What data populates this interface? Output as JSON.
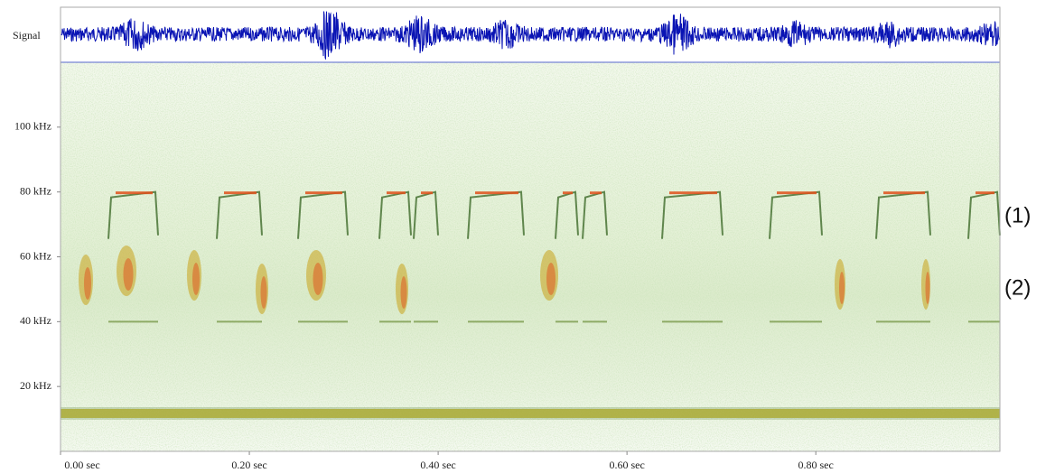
{
  "chart_data": {
    "type": "spectrogram",
    "signal_label": "Signal",
    "xlim": [
      0,
      0.995
    ],
    "ylim": [
      0,
      120
    ],
    "xticks": [
      {
        "value": 0,
        "label": "0.00 sec"
      },
      {
        "value": 0.2,
        "label": "0.20 sec"
      },
      {
        "value": 0.4,
        "label": "0.40 sec"
      },
      {
        "value": 0.6,
        "label": "0.60 sec"
      },
      {
        "value": 0.8,
        "label": "0.80 sec"
      }
    ],
    "yticks": [
      {
        "value": 20,
        "label": "20 kHz"
      },
      {
        "value": 40,
        "label": "40 kHz"
      },
      {
        "value": 60,
        "label": "60 kHz"
      },
      {
        "value": 80,
        "label": "80 kHz"
      },
      {
        "value": 100,
        "label": "100 kHz"
      }
    ],
    "annotations": [
      "(1)",
      "(2)"
    ],
    "signal_color": "#0a14b4"
  }
}
